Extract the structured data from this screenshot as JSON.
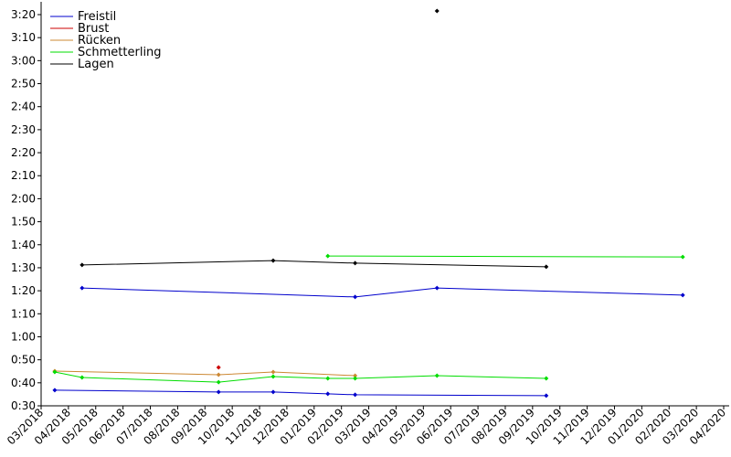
{
  "chart_data": {
    "type": "line",
    "legend": "upper left",
    "grid": false,
    "xlim": [
      "2018-03",
      "2020-04"
    ],
    "xticks": [
      {
        "value": "2018-03",
        "label": "03/2018"
      },
      {
        "value": "2018-04",
        "label": "04/2018"
      },
      {
        "value": "2018-05",
        "label": "05/2018"
      },
      {
        "value": "2018-06",
        "label": "06/2018"
      },
      {
        "value": "2018-07",
        "label": "07/2018"
      },
      {
        "value": "2018-08",
        "label": "08/2018"
      },
      {
        "value": "2018-09",
        "label": "09/2018"
      },
      {
        "value": "2018-10",
        "label": "10/2018"
      },
      {
        "value": "2018-11",
        "label": "11/2018"
      },
      {
        "value": "2018-12",
        "label": "12/2018"
      },
      {
        "value": "2019-01",
        "label": "01/2019"
      },
      {
        "value": "2019-02",
        "label": "02/2019"
      },
      {
        "value": "2019-03",
        "label": "03/2019"
      },
      {
        "value": "2019-04",
        "label": "04/2019"
      },
      {
        "value": "2019-05",
        "label": "05/2019"
      },
      {
        "value": "2019-06",
        "label": "06/2019"
      },
      {
        "value": "2019-07",
        "label": "07/2019"
      },
      {
        "value": "2019-08",
        "label": "08/2019"
      },
      {
        "value": "2019-09",
        "label": "09/2019"
      },
      {
        "value": "2019-10",
        "label": "10/2019"
      },
      {
        "value": "2019-11",
        "label": "11/2019"
      },
      {
        "value": "2019-12",
        "label": "12/2019"
      },
      {
        "value": "2020-01",
        "label": "01/2020"
      },
      {
        "value": "2020-02",
        "label": "02/2020"
      },
      {
        "value": "2020-03",
        "label": "03/2020"
      },
      {
        "value": "2020-04",
        "label": "04/2020"
      }
    ],
    "ylim": [
      30,
      200
    ],
    "yticks": [
      {
        "value": 30,
        "label": "0:30"
      },
      {
        "value": 40,
        "label": "0:40"
      },
      {
        "value": 50,
        "label": "0:50"
      },
      {
        "value": 60,
        "label": "1:00"
      },
      {
        "value": 70,
        "label": "1:10"
      },
      {
        "value": 80,
        "label": "1:20"
      },
      {
        "value": 90,
        "label": "1:30"
      },
      {
        "value": 100,
        "label": "1:40"
      },
      {
        "value": 110,
        "label": "1:50"
      },
      {
        "value": 120,
        "label": "2:00"
      },
      {
        "value": 130,
        "label": "2:10"
      },
      {
        "value": 140,
        "label": "2:20"
      },
      {
        "value": 150,
        "label": "2:30"
      },
      {
        "value": 160,
        "label": "2:40"
      },
      {
        "value": 170,
        "label": "2:50"
      },
      {
        "value": 180,
        "label": "3:00"
      },
      {
        "value": 190,
        "label": "3:10"
      },
      {
        "value": 200,
        "label": "3:20"
      }
    ],
    "series": [
      {
        "name": "Freistil",
        "color": "#0000cc",
        "x": [
          "2018-04",
          "2019-02",
          "2019-05",
          "2020-02"
        ],
        "values": [
          81.2,
          77.3,
          81.2,
          78.1
        ]
      },
      {
        "name": "Freistil",
        "color": "#0000cc",
        "x": [
          "2018-03",
          "2018-09",
          "2018-11",
          "2019-01",
          "2019-02",
          "2019-09"
        ],
        "values": [
          36.8,
          36.0,
          36.0,
          35.2,
          34.8,
          34.4
        ]
      },
      {
        "name": "Brust",
        "color": "#cc0000",
        "x": [
          "2018-09"
        ],
        "values": [
          46.7
        ]
      },
      {
        "name": "Rücken",
        "color": "#cc8833",
        "x": [
          "2018-03",
          "2018-09",
          "2018-11",
          "2019-02"
        ],
        "values": [
          45.1,
          43.5,
          44.7,
          43.1
        ]
      },
      {
        "name": "Schmetterling",
        "color": "#00dd00",
        "x": [
          "2018-03",
          "2018-04",
          "2018-09",
          "2018-11",
          "2019-01",
          "2019-02",
          "2019-05",
          "2019-09"
        ],
        "values": [
          44.7,
          42.3,
          40.3,
          42.7,
          41.9,
          41.9,
          43.1,
          41.9
        ]
      },
      {
        "name": "Schmetterling",
        "color": "#00dd00",
        "x": [
          "2019-01",
          "2020-02"
        ],
        "values": [
          95.1,
          94.7
        ]
      },
      {
        "name": "Lagen",
        "color": "#000000",
        "x": [
          "2018-04",
          "2018-11",
          "2019-02",
          "2019-09"
        ],
        "values": [
          91.2,
          93.1,
          92.0,
          90.4
        ]
      },
      {
        "name": "Lagen",
        "color": "#000000",
        "x": [
          "2019-05"
        ],
        "values": [
          201.6
        ]
      }
    ]
  }
}
